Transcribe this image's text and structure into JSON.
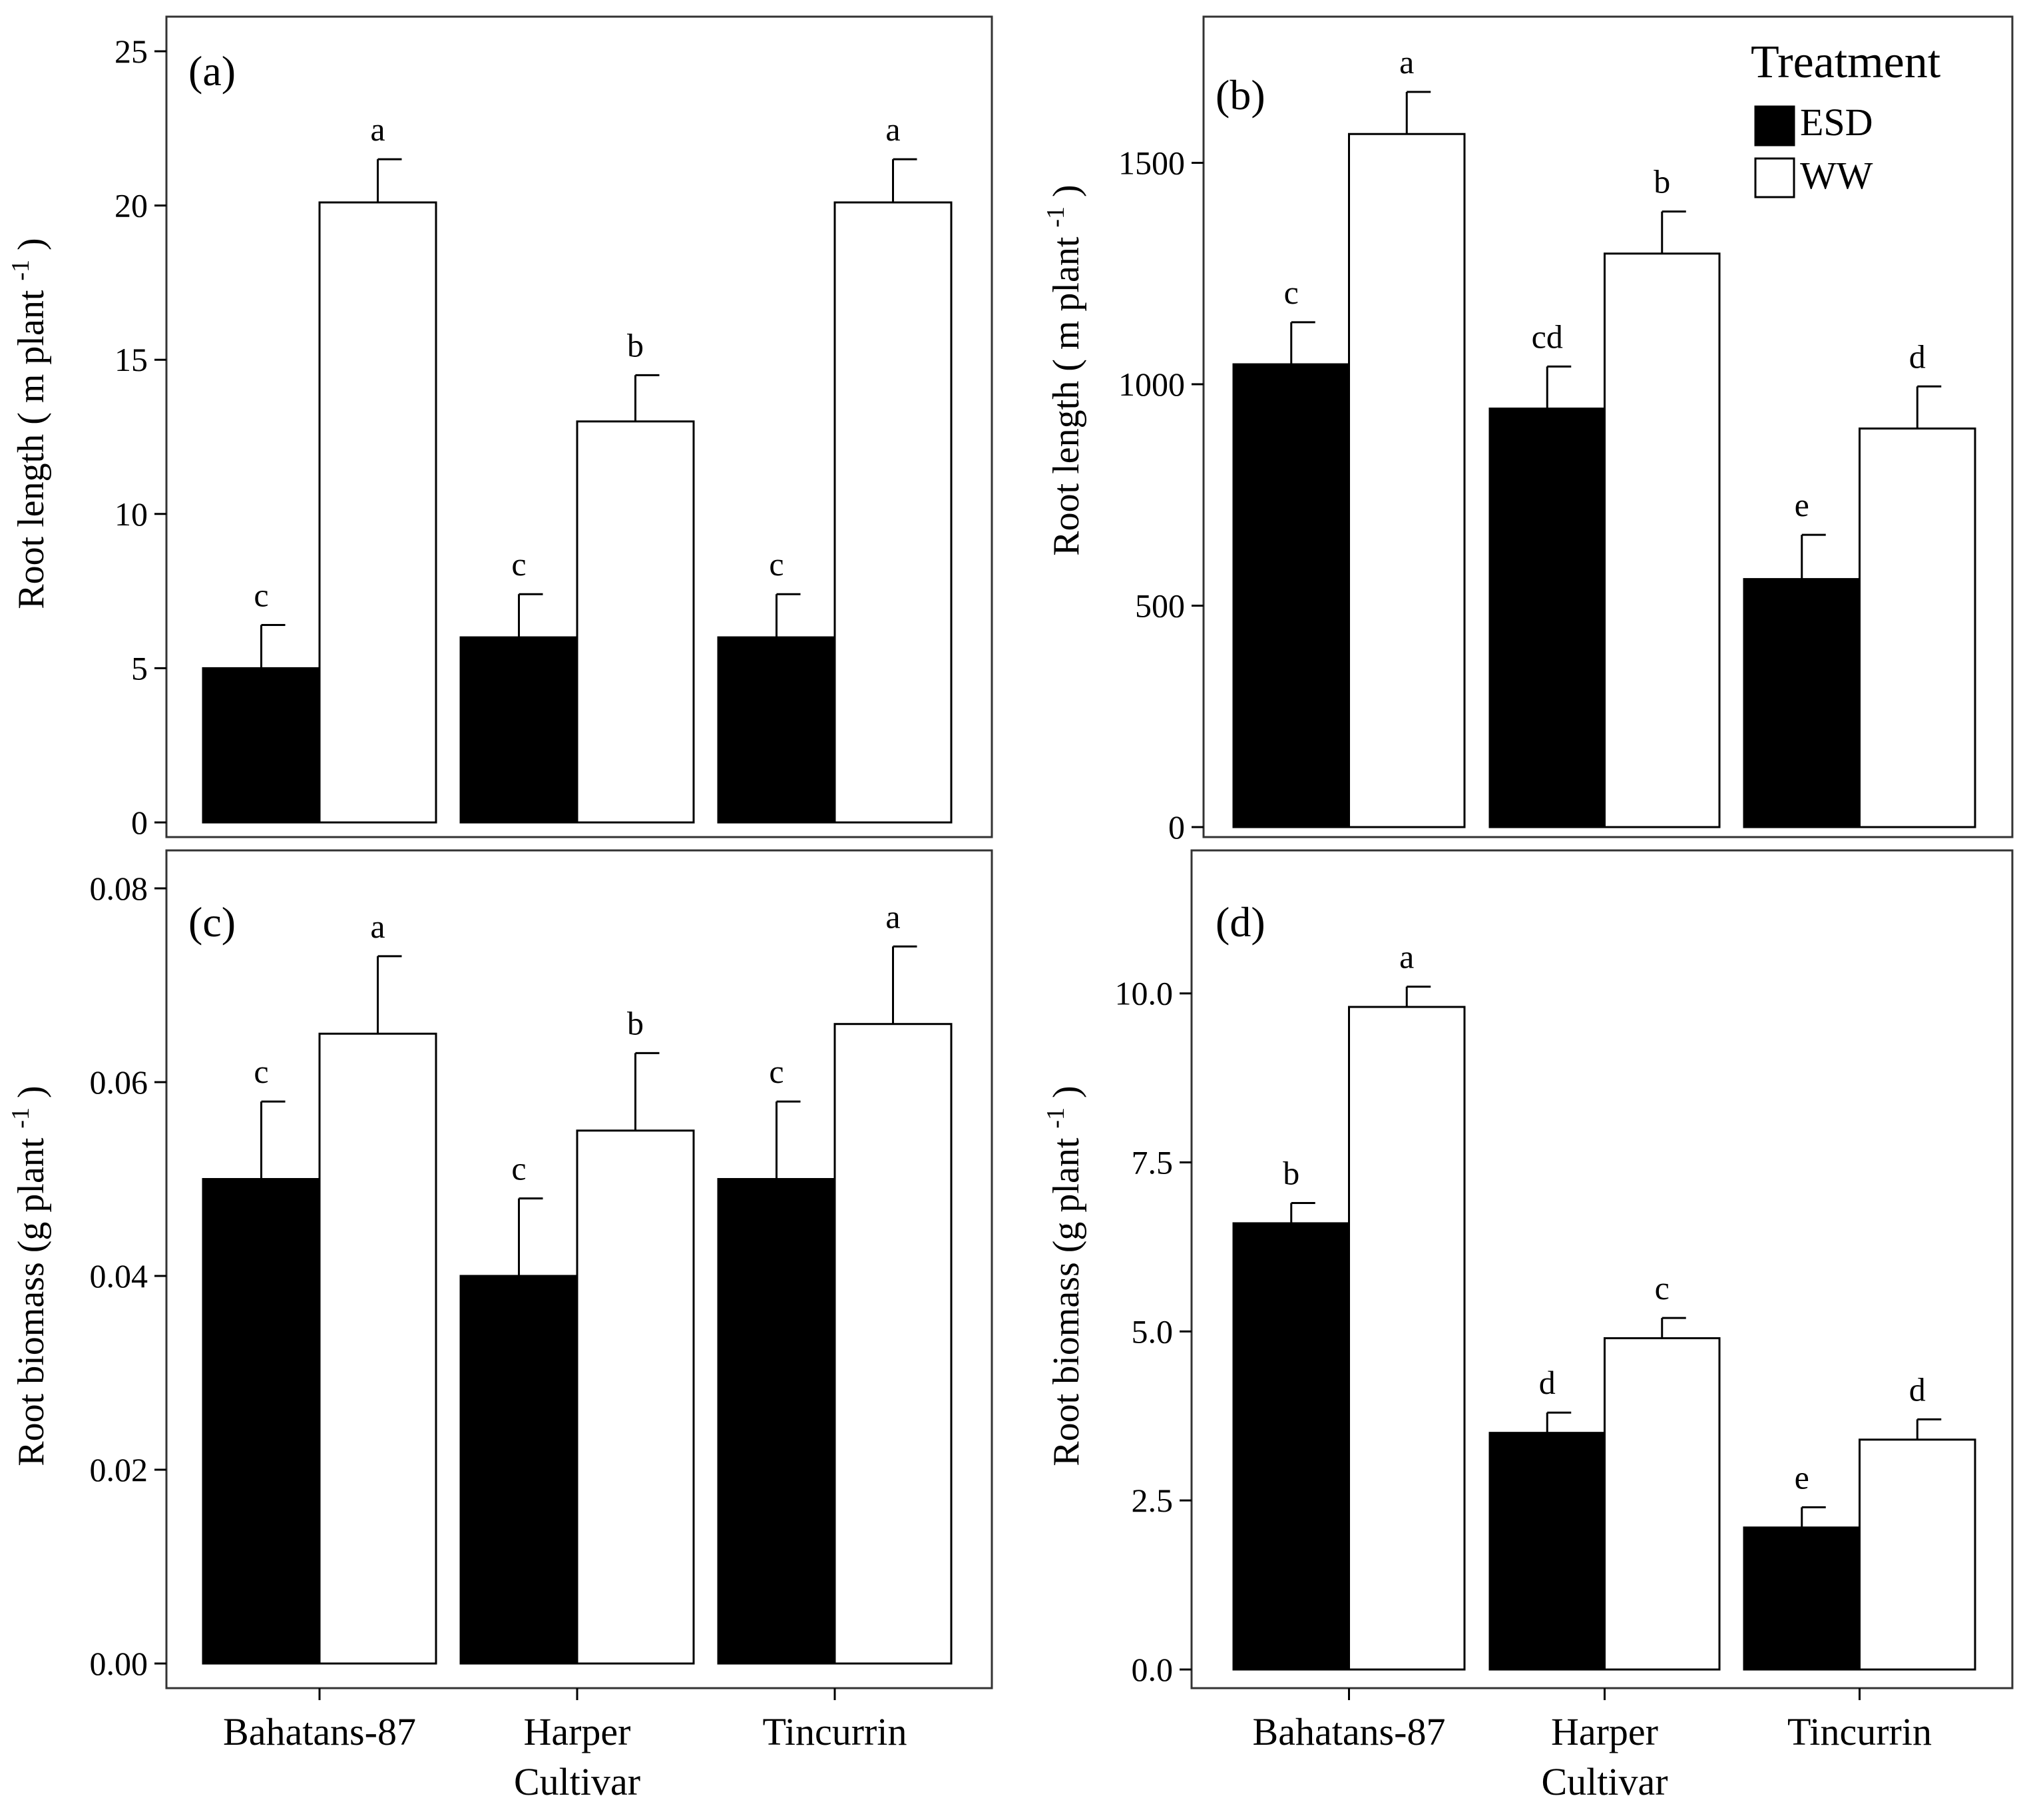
{
  "chart_data": [
    {
      "panel": "(a)",
      "type": "bar",
      "ylabel": "Root length ( m plant",
      "ylabel_sup": "-1",
      "ylabel_close": ")",
      "ylim": [
        0,
        25
      ],
      "yticks": [
        0,
        5,
        10,
        15,
        20,
        25
      ],
      "ytick_labels": [
        "0",
        "5",
        "10",
        "15",
        "20",
        "25"
      ],
      "categories": [
        "Bahatans-87",
        "Harper",
        "Tincurrin"
      ],
      "series": [
        {
          "name": "ESD",
          "color": "#000000",
          "values": [
            5.0,
            6.0,
            6.0
          ],
          "errors": [
            1.4,
            1.4,
            1.4
          ],
          "labels": [
            "c",
            "c",
            "c"
          ]
        },
        {
          "name": "WW",
          "color": "#ffffff",
          "values": [
            20.1,
            13.0,
            20.1
          ],
          "errors": [
            1.4,
            1.5,
            1.4
          ],
          "labels": [
            "a",
            "b",
            "a"
          ]
        }
      ]
    },
    {
      "panel": "(b)",
      "type": "bar",
      "ylabel": "Root length ( m plant",
      "ylabel_sup": "-1",
      "ylabel_close": ")",
      "ylim": [
        0,
        1830
      ],
      "yticks": [
        0,
        500,
        1000,
        1500
      ],
      "ytick_labels": [
        "0",
        "500",
        "1000",
        "1500"
      ],
      "categories": [
        "Bahatans-87",
        "Harper",
        "Tincurrin"
      ],
      "series": [
        {
          "name": "ESD",
          "color": "#000000",
          "values": [
            1045,
            945,
            560
          ],
          "errors": [
            95,
            95,
            100
          ],
          "labels": [
            "c",
            "cd",
            "e"
          ]
        },
        {
          "name": "WW",
          "color": "#ffffff",
          "values": [
            1565,
            1295,
            900
          ],
          "errors": [
            95,
            95,
            95
          ],
          "labels": [
            "a",
            "b",
            "d"
          ]
        }
      ]
    },
    {
      "panel": "(c)",
      "type": "bar",
      "ylabel": "Root biomass (g plant",
      "ylabel_sup": "-1",
      "ylabel_close": ")",
      "ylim": [
        0,
        0.08
      ],
      "yticks": [
        0,
        0.02,
        0.04,
        0.06,
        0.08
      ],
      "ytick_labels": [
        "0.00",
        "0.02",
        "0.04",
        "0.06",
        "0.08"
      ],
      "categories": [
        "Bahatans-87",
        "Harper",
        "Tincurrin"
      ],
      "xlabel": "Cultivar",
      "series": [
        {
          "name": "ESD",
          "color": "#000000",
          "values": [
            0.05,
            0.04,
            0.05
          ],
          "errors": [
            0.008,
            0.008,
            0.008
          ],
          "labels": [
            "c",
            "c",
            "c"
          ]
        },
        {
          "name": "WW",
          "color": "#ffffff",
          "values": [
            0.065,
            0.055,
            0.066
          ],
          "errors": [
            0.008,
            0.008,
            0.008
          ],
          "labels": [
            "a",
            "b",
            "a"
          ]
        }
      ]
    },
    {
      "panel": "(d)",
      "type": "bar",
      "ylabel": "Root biomass (g plant",
      "ylabel_sup": "-1",
      "ylabel_close": ")",
      "ylim": [
        0,
        11.8
      ],
      "yticks": [
        0,
        2.5,
        5.0,
        7.5,
        10.0
      ],
      "ytick_labels": [
        "0.0",
        "2.5",
        "5.0",
        "7.5",
        "10.0"
      ],
      "categories": [
        "Bahatans-87",
        "Harper",
        "Tincurrin"
      ],
      "xlabel": "Cultivar",
      "series": [
        {
          "name": "ESD",
          "color": "#000000",
          "values": [
            6.6,
            3.5,
            2.1
          ],
          "errors": [
            0.3,
            0.3,
            0.3
          ],
          "labels": [
            "b",
            "d",
            "e"
          ]
        },
        {
          "name": "WW",
          "color": "#ffffff",
          "values": [
            9.8,
            4.9,
            3.4
          ],
          "errors": [
            0.3,
            0.3,
            0.3
          ],
          "labels": [
            "a",
            "c",
            "d"
          ]
        }
      ]
    }
  ],
  "legend": {
    "title": "Treatment",
    "items": [
      {
        "label": "ESD",
        "color": "#000000"
      },
      {
        "label": "WW",
        "color": "#ffffff"
      }
    ]
  }
}
